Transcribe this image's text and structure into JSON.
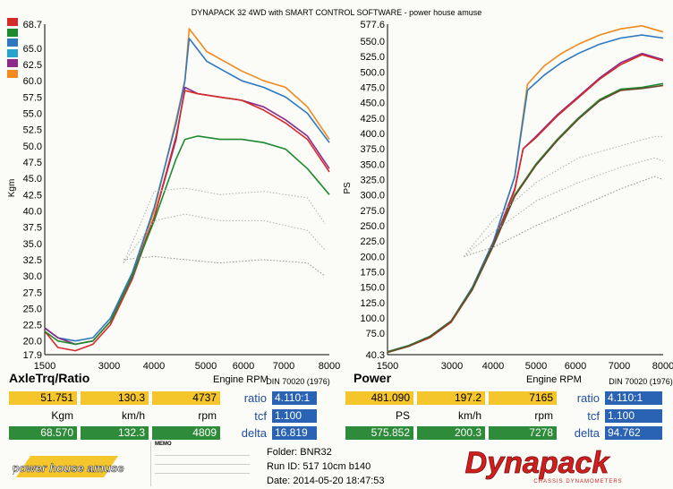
{
  "header": {
    "title": "DYNAPACK 32 4WD with SMART CONTROL SOFTWARE - power house amuse"
  },
  "colors": {
    "red": "#d42a2a",
    "green": "#1e8a2e",
    "blue": "#2e78c0",
    "cyan": "#27a3cc",
    "purple": "#8a2a8a",
    "orange": "#f08a1e"
  },
  "swatch_colors": [
    "#d42a2a",
    "#1e8a2e",
    "#2e78c0",
    "#27a3cc",
    "#8a2a8a",
    "#f08a1e"
  ],
  "chart_data": [
    {
      "type": "line",
      "title": "AxleTrq/Ratio",
      "xlabel": "Engine RPM",
      "ylabel": "Kgm",
      "xlim": [
        1500,
        8000
      ],
      "ylim": [
        17.9,
        68.7
      ],
      "xticks": [
        "1500",
        "3000",
        "4000",
        "5000",
        "6000",
        "7000",
        "8000"
      ],
      "yticks": [
        "68.7",
        "65.0",
        "62.5",
        "60.0",
        "57.5",
        "55.0",
        "52.5",
        "50.0",
        "47.5",
        "45.0",
        "42.5",
        "40.0",
        "37.5",
        "35.0",
        "32.5",
        "30.0",
        "27.5",
        "25.0",
        "22.5",
        "20.0",
        "17.9"
      ],
      "standard": "DIN 70020 (1976)",
      "series": [
        {
          "color": "#f08a1e",
          "x": [
            1500,
            1800,
            2200,
            2600,
            3000,
            3500,
            4000,
            4500,
            4700,
            4800,
            5200,
            5600,
            6000,
            6500,
            7000,
            7500,
            8000
          ],
          "values": [
            22.0,
            20.5,
            19.5,
            20.0,
            23.0,
            30.0,
            40.0,
            54.0,
            60.0,
            68.0,
            64.5,
            63.0,
            61.5,
            60.0,
            59.0,
            56.0,
            51.0
          ]
        },
        {
          "color": "#2e78c0",
          "x": [
            1500,
            1800,
            2200,
            2600,
            3000,
            3500,
            4000,
            4500,
            4700,
            4800,
            5200,
            5600,
            6000,
            6500,
            7000,
            7500,
            8000
          ],
          "values": [
            22.0,
            20.5,
            20.0,
            20.5,
            23.5,
            30.5,
            40.5,
            53.5,
            60.0,
            66.5,
            63.0,
            61.5,
            60.0,
            59.0,
            57.5,
            55.0,
            50.5
          ]
        },
        {
          "color": "#8a2a8a",
          "x": [
            1500,
            1800,
            2200,
            2600,
            3000,
            3500,
            4000,
            4500,
            4700,
            5000,
            5500,
            6000,
            6500,
            7000,
            7500,
            8000
          ],
          "values": [
            22.0,
            20.5,
            19.5,
            20.0,
            23.0,
            30.0,
            39.0,
            51.0,
            59.0,
            58.0,
            57.5,
            57.0,
            56.0,
            54.0,
            51.5,
            46.5
          ]
        },
        {
          "color": "#d42a2a",
          "x": [
            1500,
            1800,
            2200,
            2600,
            3000,
            3500,
            4000,
            4500,
            4700,
            5000,
            5500,
            6000,
            6500,
            7000,
            7500,
            8000
          ],
          "values": [
            21.5,
            19.0,
            18.5,
            19.5,
            22.5,
            29.5,
            39.0,
            51.5,
            58.5,
            58.0,
            57.5,
            57.0,
            55.5,
            53.5,
            51.0,
            46.0
          ]
        },
        {
          "color": "#1e8a2e",
          "x": [
            1500,
            1800,
            2200,
            2600,
            3000,
            3500,
            4000,
            4500,
            4700,
            5000,
            5500,
            6000,
            6500,
            7000,
            7500,
            8000
          ],
          "values": [
            21.5,
            20.0,
            19.5,
            20.0,
            23.0,
            30.0,
            38.5,
            48.0,
            51.0,
            51.5,
            51.0,
            51.0,
            50.5,
            49.5,
            46.5,
            42.5
          ]
        },
        {
          "color": "#b0b0b0",
          "dotted": true,
          "x": [
            3300,
            4000,
            4700,
            5500,
            6500,
            7500,
            7900
          ],
          "values": [
            32.0,
            43.0,
            43.5,
            42.5,
            43.0,
            42.0,
            38.0
          ]
        },
        {
          "color": "#b0b0b0",
          "dotted": true,
          "x": [
            3300,
            4000,
            4700,
            5500,
            6500,
            7500,
            7900
          ],
          "values": [
            32.0,
            38.5,
            39.5,
            38.5,
            38.5,
            37.0,
            34.0
          ]
        },
        {
          "color": "#909090",
          "dotted": true,
          "x": [
            3300,
            4000,
            4700,
            5500,
            6500,
            7500,
            7900
          ],
          "values": [
            32.5,
            33.0,
            32.5,
            32.0,
            32.5,
            32.0,
            30.0
          ]
        }
      ]
    },
    {
      "type": "line",
      "title": "Power",
      "xlabel": "Engine RPM",
      "ylabel": "PS",
      "xlim": [
        1500,
        8000
      ],
      "ylim": [
        40.3,
        577.6
      ],
      "xticks": [
        "1500",
        "3000",
        "4000",
        "5000",
        "6000",
        "7000",
        "8000"
      ],
      "yticks": [
        "577.6",
        "550.0",
        "525.0",
        "500.0",
        "475.0",
        "450.0",
        "425.0",
        "400.0",
        "375.0",
        "350.0",
        "325.0",
        "300.0",
        "275.0",
        "250.0",
        "225.0",
        "200.0",
        "175.0",
        "150.0",
        "125.0",
        "100.0",
        "75.0",
        "40.3"
      ],
      "standard": "DIN 70020 (1976)",
      "series": [
        {
          "color": "#f08a1e",
          "x": [
            1500,
            2000,
            2500,
            3000,
            3500,
            4000,
            4500,
            4800,
            5200,
            5600,
            6000,
            6500,
            7000,
            7500,
            8000
          ],
          "values": [
            45,
            55,
            70,
            95,
            150,
            225,
            330,
            480,
            510,
            530,
            545,
            560,
            570,
            575,
            565
          ]
        },
        {
          "color": "#2e78c0",
          "x": [
            1500,
            2000,
            2500,
            3000,
            3500,
            4000,
            4500,
            4800,
            5200,
            5600,
            6000,
            6500,
            7000,
            7500,
            8000
          ],
          "values": [
            45,
            55,
            70,
            95,
            150,
            225,
            330,
            470,
            495,
            515,
            530,
            545,
            555,
            560,
            555
          ]
        },
        {
          "color": "#8a2a8a",
          "x": [
            1500,
            2000,
            2500,
            3000,
            3500,
            4000,
            4500,
            4700,
            5000,
            5500,
            6000,
            6500,
            7000,
            7500,
            8000
          ],
          "values": [
            45,
            55,
            70,
            95,
            148,
            222,
            310,
            375,
            395,
            430,
            460,
            490,
            515,
            530,
            520
          ]
        },
        {
          "color": "#d42a2a",
          "x": [
            1500,
            2000,
            2500,
            3000,
            3500,
            4000,
            4500,
            4700,
            5000,
            5500,
            6000,
            6500,
            7000,
            7500,
            8000
          ],
          "values": [
            44,
            54,
            68,
            93,
            146,
            220,
            308,
            375,
            393,
            428,
            458,
            488,
            512,
            528,
            518
          ]
        },
        {
          "color": "#1e8a2e",
          "x": [
            1500,
            2000,
            2500,
            3000,
            3500,
            4000,
            4500,
            5000,
            5500,
            6000,
            6500,
            7000,
            7500,
            8000
          ],
          "values": [
            45,
            55,
            70,
            95,
            148,
            220,
            300,
            350,
            390,
            425,
            455,
            472,
            475,
            481
          ]
        },
        {
          "color": "#6a4a2a",
          "x": [
            1500,
            2000,
            2500,
            3000,
            3500,
            4000,
            4500,
            5000,
            5500,
            6000,
            6500,
            7000,
            7500,
            8000
          ],
          "values": [
            44,
            54,
            69,
            94,
            146,
            218,
            298,
            348,
            388,
            423,
            453,
            470,
            473,
            478
          ]
        },
        {
          "color": "#b0b0b0",
          "dotted": true,
          "x": [
            3300,
            4000,
            5000,
            6000,
            7000,
            7800,
            8000
          ],
          "values": [
            200,
            260,
            320,
            360,
            380,
            395,
            395
          ]
        },
        {
          "color": "#b0b0b0",
          "dotted": true,
          "x": [
            3300,
            4000,
            5000,
            6000,
            7000,
            7800,
            8000
          ],
          "values": [
            200,
            240,
            290,
            320,
            345,
            360,
            355
          ]
        },
        {
          "color": "#909090",
          "dotted": true,
          "x": [
            3300,
            4000,
            5000,
            6000,
            7000,
            7800,
            8000
          ],
          "values": [
            200,
            215,
            250,
            280,
            310,
            330,
            325
          ]
        }
      ]
    }
  ],
  "readouts": {
    "left": {
      "top_values": [
        "51.751",
        "130.3",
        "4737"
      ],
      "units": [
        "Kgm",
        "km/h",
        "rpm"
      ],
      "bottom_values": [
        "68.570",
        "132.3",
        "4809"
      ]
    },
    "right": {
      "top_values": [
        "481.090",
        "197.2",
        "7165"
      ],
      "units": [
        "PS",
        "km/h",
        "rpm"
      ],
      "bottom_values": [
        "575.852",
        "200.3",
        "7278"
      ]
    },
    "ratio_label": "ratio",
    "ratio_left": "4.110:1",
    "ratio_right": "4.110:1",
    "tcf_label": "tcf",
    "tcf_left": "1.100",
    "tcf_right": "1.100",
    "delta_label": "delta",
    "delta_left": "16.819",
    "delta_right": "94.762"
  },
  "info": {
    "folder": "Folder:  BNR32",
    "run_id": "Run ID:  517 10cm b140",
    "date": "Date:  2014-05-20 18:47:53"
  },
  "memo": {
    "title": "MEMO"
  },
  "logos": {
    "amuse": "power house amuse",
    "dynapack": "Dynapack",
    "dynapack_sub": "CHASSIS DYNAMOMETERS"
  }
}
